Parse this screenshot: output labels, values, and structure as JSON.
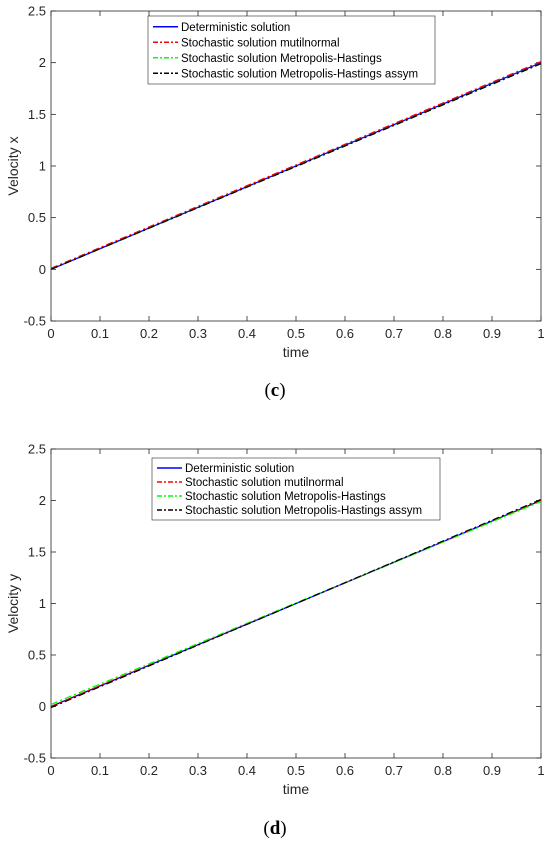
{
  "chart_data": [
    {
      "type": "line",
      "caption": "(c)",
      "caption_open": "(",
      "caption_letter": "c",
      "caption_close": ")",
      "title": "",
      "xlabel": "time",
      "ylabel": "Velocity x",
      "xlim": [
        0,
        1
      ],
      "ylim": [
        -0.5,
        2.5
      ],
      "xticks": [
        "0",
        "0.1",
        "0.2",
        "0.3",
        "0.4",
        "0.5",
        "0.6",
        "0.7",
        "0.8",
        "0.9",
        "1"
      ],
      "yticks": [
        "-0.5",
        "0",
        "0.5",
        "1",
        "1.5",
        "2",
        "2.5"
      ],
      "legend_position": "top-center",
      "series": [
        {
          "name": "Deterministic solution",
          "color": "#0000ff",
          "dash": "solid",
          "x": [
            0,
            1
          ],
          "y": [
            0.0,
            2.0
          ]
        },
        {
          "name": "Stochastic solution mutilnormal",
          "color": "#ff0000",
          "dash": "dashdot",
          "x": [
            0,
            1
          ],
          "y": [
            0.01,
            2.01
          ]
        },
        {
          "name": "Stochastic solution Metropolis-Hastings",
          "color": "#00ff00",
          "dash": "dashdot",
          "x": [
            0,
            1
          ],
          "y": [
            0.0,
            1.99
          ]
        },
        {
          "name": "Stochastic solution Metropolis-Hastings assym",
          "color": "#000000",
          "dash": "dashdot",
          "x": [
            0,
            1
          ],
          "y": [
            0.0,
            1.99
          ]
        }
      ]
    },
    {
      "type": "line",
      "caption": "(d)",
      "caption_open": "(",
      "caption_letter": "d",
      "caption_close": ")",
      "title": "",
      "xlabel": "time",
      "ylabel": "Velocity y",
      "xlim": [
        0,
        1
      ],
      "ylim": [
        -0.5,
        2.5
      ],
      "xticks": [
        "0",
        "0.1",
        "0.2",
        "0.3",
        "0.4",
        "0.5",
        "0.6",
        "0.7",
        "0.8",
        "0.9",
        "1"
      ],
      "yticks": [
        "-0.5",
        "0",
        "0.5",
        "1",
        "1.5",
        "2",
        "2.5"
      ],
      "legend_position": "top-center",
      "series": [
        {
          "name": "Deterministic solution",
          "color": "#0000ff",
          "dash": "solid",
          "x": [
            0,
            1
          ],
          "y": [
            0.0,
            2.0
          ]
        },
        {
          "name": "Stochastic solution mutilnormal",
          "color": "#ff0000",
          "dash": "dashdot",
          "x": [
            0,
            1
          ],
          "y": [
            0.0,
            2.0
          ]
        },
        {
          "name": "Stochastic solution Metropolis-Hastings",
          "color": "#00ff00",
          "dash": "dashdot",
          "x": [
            0,
            1
          ],
          "y": [
            0.02,
            1.99
          ]
        },
        {
          "name": "Stochastic solution Metropolis-Hastings assym",
          "color": "#000000",
          "dash": "dashdot",
          "x": [
            0,
            1
          ],
          "y": [
            -0.01,
            2.01
          ]
        }
      ]
    }
  ]
}
